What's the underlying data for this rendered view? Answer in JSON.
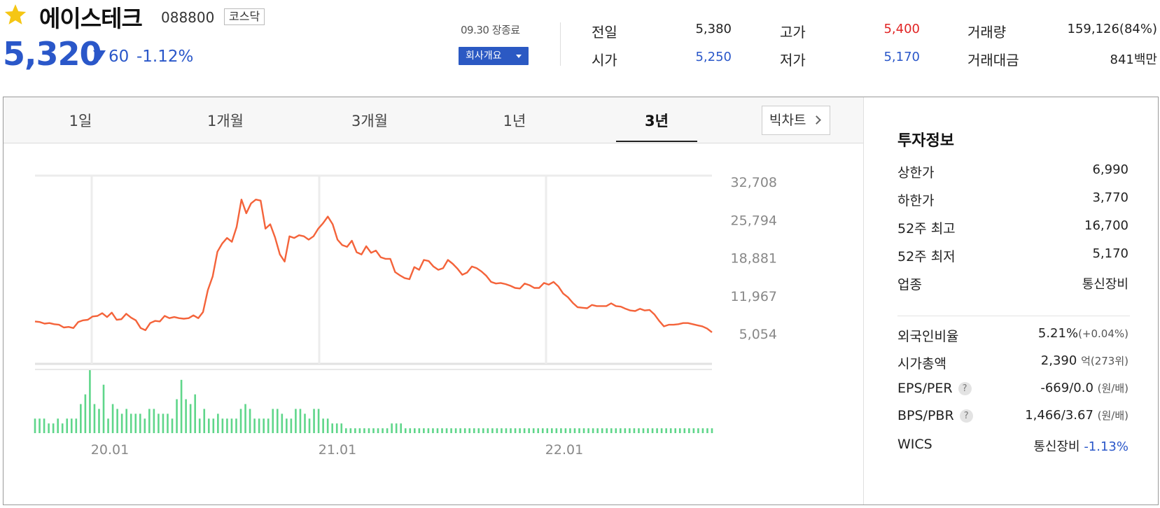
{
  "header": {
    "stock_name": "에이스테크",
    "stock_code": "088800",
    "market": "코스닥",
    "price": "5,320",
    "change": "60",
    "change_rate": "-1.12%",
    "date_status": "09.30 장종료",
    "company_button": "회사개요"
  },
  "quote": {
    "prev_close_label": "전일",
    "prev_close": "5,380",
    "open_label": "시가",
    "open": "5,250",
    "high_label": "고가",
    "high": "5,400",
    "low_label": "저가",
    "low": "5,170",
    "volume_label": "거래량",
    "volume": "159,126(84%)",
    "amount_label": "거래대금",
    "amount": "841백만"
  },
  "tabs": [
    {
      "label": "1일"
    },
    {
      "label": "1개월"
    },
    {
      "label": "3개월"
    },
    {
      "label": "1년"
    },
    {
      "label": "3년"
    }
  ],
  "active_tab": "3년",
  "big_chart_label": "빅차트",
  "chart_data": {
    "type": "line",
    "y_ticks": [
      "32,708",
      "25,794",
      "18,881",
      "11,967",
      "5,054"
    ],
    "x_ticks": [
      "20.01",
      "21.01",
      "22.01"
    ],
    "ylim": [
      5054,
      32708
    ],
    "colors": {
      "price_line": "#f4633a",
      "volume_bar": "#5fd68a"
    },
    "price": [
      7300,
      7200,
      6900,
      7000,
      6800,
      6700,
      6200,
      6300,
      6100,
      7200,
      7500,
      7600,
      8200,
      8300,
      8800,
      8100,
      8900,
      7600,
      7700,
      8700,
      8000,
      7500,
      6100,
      5700,
      7000,
      7400,
      7300,
      8300,
      7900,
      8100,
      7900,
      7800,
      7900,
      8400,
      7900,
      9000,
      13000,
      15500,
      20000,
      21500,
      22500,
      21800,
      24500,
      29500,
      27000,
      28800,
      29500,
      29300,
      24200,
      25000,
      22600,
      19500,
      18200,
      22800,
      22500,
      23000,
      22800,
      22200,
      22800,
      24200,
      25200,
      26400,
      25000,
      22200,
      21200,
      20900,
      22000,
      19900,
      19500,
      21000,
      19800,
      20200,
      19000,
      18700,
      18700,
      16300,
      15700,
      15200,
      15000,
      17200,
      16700,
      18500,
      18300,
      17300,
      16700,
      17000,
      18500,
      17800,
      16900,
      15800,
      16200,
      17300,
      17000,
      16400,
      15600,
      14500,
      14200,
      14300,
      14100,
      13800,
      13400,
      13300,
      14200,
      13900,
      13400,
      13400,
      14300,
      14000,
      14500,
      13700,
      12400,
      11700,
      10700,
      9900,
      9800,
      9700,
      10300,
      10100,
      10100,
      10100,
      10600,
      10100,
      10000,
      9600,
      9300,
      9200,
      9600,
      9300,
      9400,
      8600,
      7400,
      6400,
      6700,
      6700,
      6800,
      7000,
      7000,
      6800,
      6600,
      6400,
      6000,
      5320
    ],
    "volume": [
      3,
      3,
      3,
      2,
      2,
      3,
      2,
      3,
      3,
      3,
      6,
      8,
      13,
      6,
      5,
      10,
      3,
      6,
      5,
      4,
      5,
      4,
      4,
      4,
      3,
      5,
      5,
      4,
      4,
      4,
      3,
      7,
      11,
      7,
      6,
      8,
      3,
      5,
      3,
      3,
      4,
      3,
      3,
      3,
      3,
      5,
      6,
      5,
      3,
      3,
      3,
      3,
      5,
      5,
      4,
      3,
      3,
      5,
      5,
      4,
      3,
      5,
      5,
      3,
      3,
      2,
      2,
      2,
      1,
      1,
      1,
      1,
      1,
      1,
      1,
      1,
      1,
      1,
      2,
      2,
      2,
      1,
      1,
      1,
      1,
      1,
      1,
      1,
      1,
      1,
      1,
      1,
      1,
      1,
      1,
      1,
      1,
      1,
      1,
      1,
      1,
      1,
      1,
      1,
      1,
      1,
      1,
      1,
      1,
      1,
      1,
      1,
      1,
      1,
      1,
      1,
      1,
      1,
      1,
      1,
      1,
      1,
      1,
      1,
      1,
      1,
      1,
      1,
      1,
      1,
      1,
      1,
      1,
      1,
      1,
      1,
      1,
      1,
      1,
      1,
      1,
      1,
      1,
      1,
      1,
      1,
      1,
      1,
      1
    ]
  },
  "invest": {
    "title": "투자정보",
    "upper_limit_label": "상한가",
    "upper_limit": "6,990",
    "lower_limit_label": "하한가",
    "lower_limit": "3,770",
    "high52_label": "52주 최고",
    "high52": "16,700",
    "low52_label": "52주 최저",
    "low52": "5,170",
    "sector_label": "업종",
    "sector": "통신장비",
    "foreign_label": "외국인비율",
    "foreign": "5.21%",
    "foreign_change": "(+0.04%)",
    "mktcap_label": "시가총액",
    "mktcap": "2,390",
    "mktcap_unit": "억(273위)",
    "eps_label": "EPS/PER",
    "eps": "-669/0.0",
    "eps_unit": "(원/배)",
    "bps_label": "BPS/PBR",
    "bps": "1,466/3.67",
    "bps_unit": "(원/배)",
    "wics_label": "WICS",
    "wics": "통신장비",
    "wics_rate": "-1.13%"
  }
}
